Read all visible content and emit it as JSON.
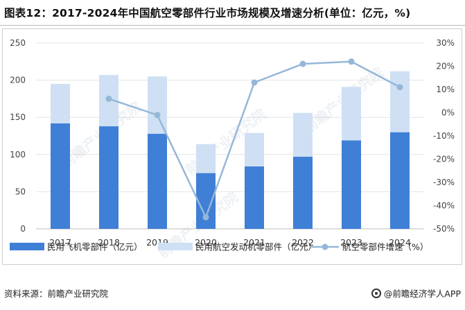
{
  "title": "图表12：2017-2024年中国航空零部件行业市场规模及增速分析(单位：亿元，%)",
  "source": "资料来源：前瞻产业研究院",
  "brand": "@前瞻经济学人APP",
  "watermark": "前瞻产业研究院",
  "colors": {
    "civil_aircraft_parts": "#3f7fd6",
    "engine_parts": "#cfe0f4",
    "growth_line": "#96b7d8"
  },
  "chart_data": {
    "type": "bar",
    "stacked": true,
    "categories": [
      "2017",
      "2018",
      "2019",
      "2020",
      "2021",
      "2022",
      "2023",
      "2024"
    ],
    "series": [
      {
        "name": "民用飞机零部件（亿元）",
        "axis": "left",
        "values": [
          142,
          138,
          128,
          75,
          84,
          97,
          119,
          130
        ]
      },
      {
        "name": "民用航空发动机零部件（亿元）",
        "axis": "left",
        "values": [
          53,
          69,
          77,
          39,
          45,
          59,
          72,
          82
        ]
      },
      {
        "name": "航空零部件增速（%）",
        "type": "line",
        "axis": "right",
        "values": [
          null,
          6,
          -1,
          -45,
          13,
          21,
          22,
          11
        ]
      }
    ],
    "y_left": {
      "ylim": [
        0,
        250
      ],
      "ticks": [
        "0",
        "50",
        "100",
        "150",
        "200",
        "250"
      ]
    },
    "y_right": {
      "ylim": [
        -50,
        30
      ],
      "ticks": [
        "-50%",
        "-40%",
        "-30%",
        "-20%",
        "-10%",
        "0%",
        "10%",
        "20%",
        "30%"
      ]
    },
    "legend_position": "bottom"
  }
}
